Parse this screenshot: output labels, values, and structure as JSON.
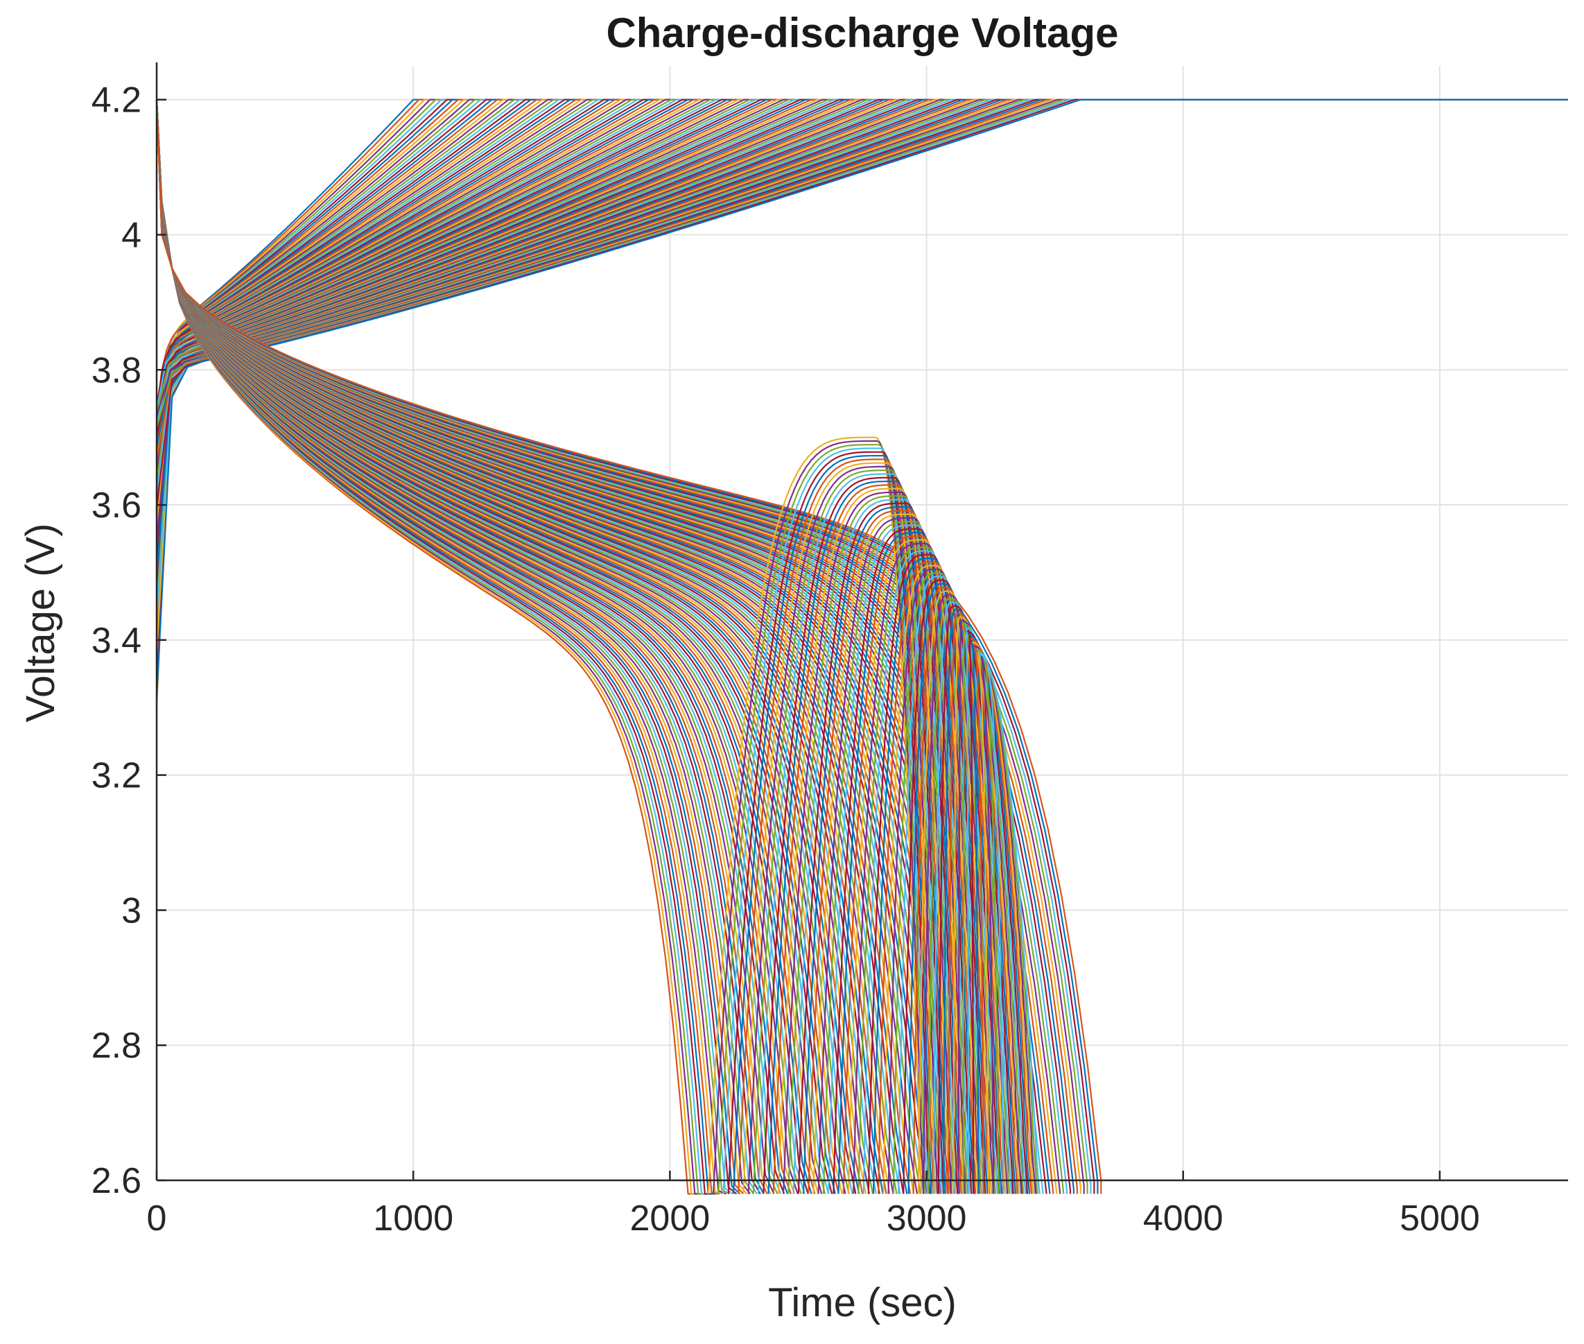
{
  "chart_data": {
    "type": "line",
    "title": "Charge-discharge Voltage",
    "xlabel": "Time (sec)",
    "ylabel": "Voltage (V)",
    "xlim": [
      0,
      5500
    ],
    "ylim": [
      2.6,
      4.25
    ],
    "xticks": [
      0,
      1000,
      2000,
      3000,
      4000,
      5000
    ],
    "yticks": [
      2.6,
      2.8,
      3,
      3.2,
      3.4,
      3.6,
      3.8,
      4,
      4.2
    ],
    "xtick_labels": [
      "0",
      "1000",
      "2000",
      "3000",
      "4000",
      "5000"
    ],
    "ytick_labels": [
      "2.6",
      "2.8",
      "3",
      "3.2",
      "3.4",
      "3.6",
      "3.8",
      "4",
      "4.2"
    ],
    "grid": true,
    "legend": "none",
    "series_count": 120,
    "palette": [
      "#0072BD",
      "#D95319",
      "#EDB120",
      "#7E2F8E",
      "#77AC30",
      "#4DBEEE",
      "#A2142F"
    ],
    "charge_family": {
      "description_points": [
        [
          0,
          3.3
        ],
        [
          30,
          3.75
        ],
        [
          150,
          3.88
        ],
        [
          600,
          3.98
        ],
        [
          1200,
          4.06
        ],
        [
          2500,
          4.14
        ],
        [
          3600,
          4.2
        ],
        [
          5500,
          4.2
        ]
      ],
      "end_time_range": [
        1000,
        3600
      ],
      "constant_voltage": 4.2
    },
    "discharge_family": {
      "start_voltage": 4.2,
      "plateau_range": [
        3.3,
        3.5
      ],
      "cutoff_time_range": [
        2100,
        3680
      ],
      "cutoff_voltage": 2.6
    },
    "rest_recovery_family": {
      "start_time_range": [
        2150,
        3300
      ],
      "peak_voltage_range": [
        3.38,
        3.7
      ],
      "peak_time_range": [
        2800,
        3200
      ]
    }
  }
}
